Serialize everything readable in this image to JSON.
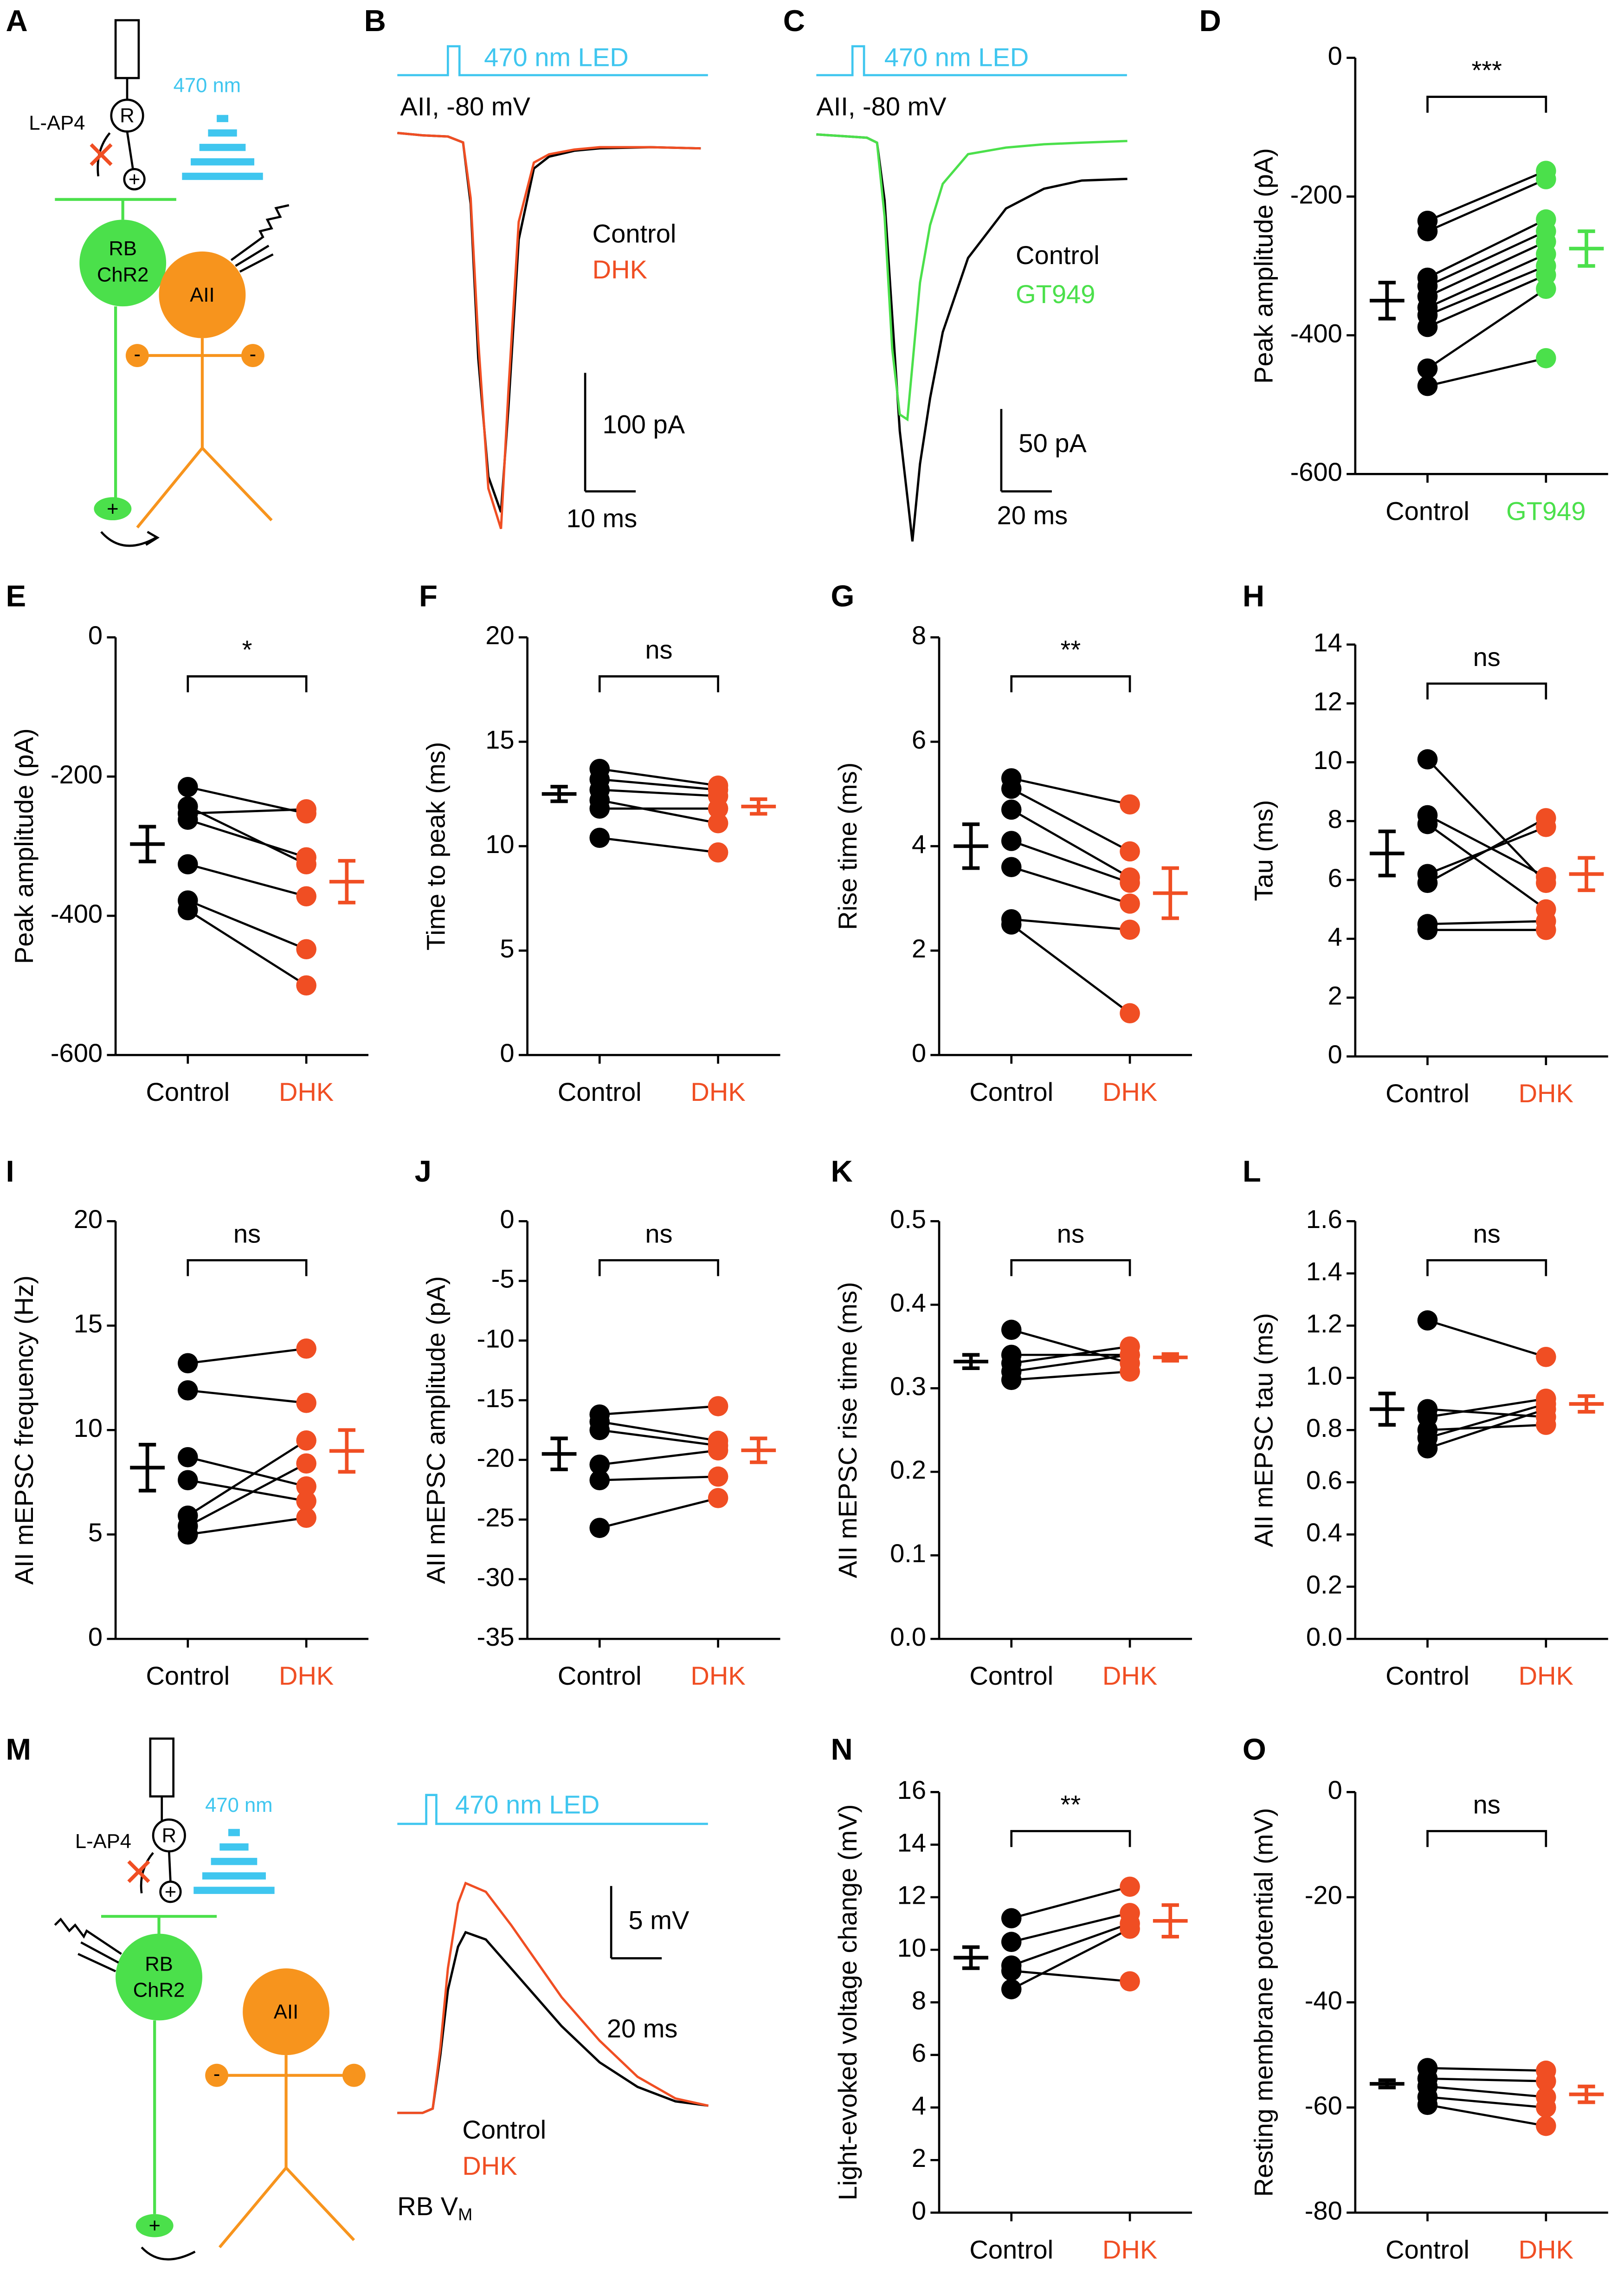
{
  "chart_data": [
    {
      "type": "trace",
      "panel": "B",
      "stimulus": "470 nm LED",
      "stimulus_color": "#3fc6ef",
      "cell_label": "AII, -80 mV",
      "x": [
        0,
        5,
        10,
        13,
        14.5,
        16,
        18,
        20.5,
        22,
        24,
        27,
        30,
        35,
        40,
        50,
        60
      ],
      "series": [
        {
          "name": "Control",
          "color": "#000000",
          "values": [
            0,
            -2,
            -3,
            -8,
            -60,
            -190,
            -290,
            -320,
            -230,
            -90,
            -30,
            -20,
            -15,
            -13,
            -12,
            -13
          ]
        },
        {
          "name": "DHK",
          "color": "#f04e23",
          "values": [
            0,
            -2,
            -3,
            -8,
            -55,
            -175,
            -300,
            -334,
            -215,
            -75,
            -25,
            -18,
            -14,
            -12,
            -12,
            -13
          ]
        }
      ],
      "scalebar": {
        "x": {
          "value": 10,
          "label": "10 ms"
        },
        "y": {
          "value": 100,
          "label": "100 pA"
        }
      }
    },
    {
      "type": "trace",
      "panel": "C",
      "stimulus": "470 nm LED",
      "stimulus_color": "#3fc6ef",
      "cell_label": "AII, -80 mV",
      "x": [
        0,
        10,
        20,
        24,
        27,
        30,
        33,
        36,
        38,
        41,
        45,
        50,
        60,
        75,
        90,
        105,
        123
      ],
      "series": [
        {
          "name": "Control",
          "color": "#000000",
          "values": [
            0,
            -1,
            -2,
            -5,
            -40,
            -110,
            -180,
            -220,
            -247,
            -200,
            -160,
            -120,
            -75,
            -45,
            -33,
            -28,
            -27
          ]
        },
        {
          "name": "GT949",
          "color": "#4be04b",
          "values": [
            0,
            -1,
            -2,
            -5,
            -50,
            -130,
            -170,
            -173,
            -140,
            -90,
            -55,
            -30,
            -12,
            -8,
            -6,
            -5,
            -4
          ]
        }
      ],
      "scalebar": {
        "x": {
          "value": 20,
          "label": "20 ms"
        },
        "y": {
          "value": 50,
          "label": "50 pA"
        }
      }
    },
    {
      "type": "paired",
      "panel": "D",
      "ylabel": "Peak amplitude (pA)",
      "ylim": [
        -600,
        0
      ],
      "yticks": [
        0,
        -200,
        -400,
        -600
      ],
      "significance": "***",
      "groups": [
        {
          "label": "Control",
          "color": "#000000",
          "values": [
            -235,
            -250,
            -317,
            -329,
            -344,
            -360,
            -371,
            -388,
            -448,
            -473
          ],
          "mean": -350,
          "sem": 26
        },
        {
          "label": "GT949",
          "color": "#4be04b",
          "values": [
            -163,
            -175,
            -233,
            -250,
            -265,
            -283,
            -300,
            -313,
            -333,
            -433
          ],
          "mean": -275,
          "sem": 25
        }
      ]
    },
    {
      "type": "paired",
      "panel": "E",
      "ylabel": "Peak amplitude (pA)",
      "ylim": [
        -600,
        0
      ],
      "yticks": [
        0,
        -200,
        -400,
        -600
      ],
      "significance": "*",
      "groups": [
        {
          "label": "Control",
          "color": "#000000",
          "values": [
            -215,
            -243,
            -262,
            -326,
            -378,
            -392,
            -253
          ],
          "mean": -297,
          "sem": 25
        },
        {
          "label": "DHK",
          "color": "#f04e23",
          "values": [
            -253,
            -326,
            -316,
            -372,
            -448,
            -500,
            -247
          ],
          "mean": -351,
          "sem": 30
        }
      ]
    },
    {
      "type": "paired",
      "panel": "F",
      "ylabel": "Time to peak (ms)",
      "ylim": [
        0,
        20
      ],
      "yticks": [
        0,
        5,
        10,
        15,
        20
      ],
      "significance": "ns",
      "groups": [
        {
          "label": "Control",
          "color": "#000000",
          "values": [
            13.7,
            13.2,
            12.7,
            12.2,
            11.8,
            10.4
          ],
          "mean": 12.5,
          "sem": 0.35
        },
        {
          "label": "DHK",
          "color": "#f04e23",
          "values": [
            12.9,
            12.7,
            12.4,
            11.1,
            11.8,
            9.7
          ],
          "mean": 11.9,
          "sem": 0.35
        }
      ]
    },
    {
      "type": "paired",
      "panel": "G",
      "ylabel": "Rise time (ms)",
      "ylim": [
        0,
        8
      ],
      "yticks": [
        0,
        2,
        4,
        6,
        8
      ],
      "significance": "**",
      "groups": [
        {
          "label": "Control",
          "color": "#000000",
          "values": [
            5.3,
            5.1,
            4.7,
            4.1,
            3.6,
            2.6,
            2.5
          ],
          "mean": 4.0,
          "sem": 0.42
        },
        {
          "label": "DHK",
          "color": "#f04e23",
          "values": [
            4.8,
            3.9,
            3.4,
            3.3,
            2.9,
            2.4,
            0.8
          ],
          "mean": 3.1,
          "sem": 0.48
        }
      ]
    },
    {
      "type": "paired",
      "panel": "H",
      "ylabel": "Tau (ms)",
      "ylim": [
        0,
        14
      ],
      "yticks": [
        0,
        2,
        4,
        6,
        8,
        10,
        12,
        14
      ],
      "significance": "ns",
      "groups": [
        {
          "label": "Control",
          "color": "#000000",
          "values": [
            10.1,
            8.2,
            7.9,
            6.2,
            5.9,
            4.5,
            4.3
          ],
          "mean": 6.9,
          "sem": 0.75
        },
        {
          "label": "DHK",
          "color": "#f04e23",
          "values": [
            5.9,
            6.1,
            5.0,
            7.8,
            8.1,
            4.6,
            4.3
          ],
          "mean": 6.2,
          "sem": 0.55
        }
      ]
    },
    {
      "type": "paired",
      "panel": "I",
      "ylabel": "AII mEPSC frequency (Hz)",
      "ylim": [
        0,
        20
      ],
      "yticks": [
        0,
        5,
        10,
        15,
        20
      ],
      "significance": "ns",
      "groups": [
        {
          "label": "Control",
          "color": "#000000",
          "values": [
            13.2,
            11.9,
            8.7,
            7.6,
            5.9,
            5.4,
            5.0
          ],
          "mean": 8.2,
          "sem": 1.1
        },
        {
          "label": "DHK",
          "color": "#f04e23",
          "values": [
            13.9,
            11.3,
            7.3,
            6.6,
            9.5,
            8.4,
            5.8
          ],
          "mean": 9.0,
          "sem": 1.0
        }
      ]
    },
    {
      "type": "paired",
      "panel": "J",
      "ylabel": "AII mEPSC amplitude (pA)",
      "ylim": [
        -35,
        0
      ],
      "yticks": [
        0,
        -5,
        -10,
        -15,
        -20,
        -25,
        -30,
        -35
      ],
      "significance": "ns",
      "groups": [
        {
          "label": "Control",
          "color": "#000000",
          "values": [
            -16.2,
            -16.8,
            -17.5,
            -20.4,
            -21.7,
            -25.7
          ],
          "mean": -19.5,
          "sem": 1.3
        },
        {
          "label": "DHK",
          "color": "#f04e23",
          "values": [
            -15.5,
            -18.4,
            -18.8,
            -19.2,
            -21.4,
            -23.2
          ],
          "mean": -19.2,
          "sem": 1.0
        }
      ]
    },
    {
      "type": "paired",
      "panel": "K",
      "ylabel": "AII mEPSC rise time (ms)",
      "ylim": [
        0,
        0.5
      ],
      "yticks": [
        {
          "value": 0,
          "label": "0.0"
        },
        0.1,
        0.2,
        0.3,
        0.4,
        0.5
      ],
      "significance": "ns",
      "groups": [
        {
          "label": "Control",
          "color": "#000000",
          "values": [
            0.37,
            0.34,
            0.33,
            0.32,
            0.31
          ],
          "mean": 0.332,
          "sem": 0.008
        },
        {
          "label": "DHK",
          "color": "#f04e23",
          "values": [
            0.33,
            0.34,
            0.35,
            0.34,
            0.32
          ],
          "mean": 0.337,
          "sem": 0.004
        }
      ]
    },
    {
      "type": "paired",
      "panel": "L",
      "ylabel": "AII mEPSC tau (ms)",
      "ylim": [
        0,
        1.6
      ],
      "yticks": [
        {
          "value": 0,
          "label": "0.0"
        },
        0.2,
        0.4,
        0.6,
        0.8,
        {
          "value": 1,
          "label": "1.0"
        },
        1.2,
        1.4,
        1.6
      ],
      "significance": "ns",
      "groups": [
        {
          "label": "Control",
          "color": "#000000",
          "values": [
            1.22,
            0.88,
            0.85,
            0.8,
            0.77,
            0.73
          ],
          "mean": 0.88,
          "sem": 0.06
        },
        {
          "label": "DHK",
          "color": "#f04e23",
          "values": [
            1.08,
            0.85,
            0.92,
            0.82,
            0.9,
            0.88
          ],
          "mean": 0.9,
          "sem": 0.03
        }
      ]
    },
    {
      "type": "trace",
      "panel": "M",
      "stimulus": "470 nm LED",
      "stimulus_color": "#3fc6ef",
      "cell_label": "RB V",
      "cell_label_subscript": "M",
      "x": [
        0,
        10,
        14,
        17,
        20,
        24,
        27,
        35,
        45,
        55,
        65,
        80,
        95,
        110,
        123
      ],
      "series": [
        {
          "name": "Control",
          "color": "#000000",
          "values": [
            0,
            0,
            0.3,
            4,
            8.5,
            11.5,
            12.5,
            12,
            10,
            8,
            6,
            3.5,
            1.8,
            0.8,
            0.5
          ]
        },
        {
          "name": "DHK",
          "color": "#f04e23",
          "values": [
            0,
            0,
            0.3,
            4.5,
            10,
            14.5,
            15.9,
            15.3,
            13,
            10.5,
            8,
            5,
            2.5,
            1,
            0.5
          ]
        }
      ],
      "scalebar": {
        "x": {
          "value": 20,
          "label": "20 ms"
        },
        "y": {
          "value": 5,
          "label": "5 mV"
        }
      }
    },
    {
      "type": "paired",
      "panel": "N",
      "ylabel": "Light-evoked voltage change (mV)",
      "ylim": [
        0,
        16
      ],
      "yticks": [
        0,
        2,
        4,
        6,
        8,
        10,
        12,
        14,
        16
      ],
      "significance": "**",
      "groups": [
        {
          "label": "Control",
          "color": "#000000",
          "values": [
            11.2,
            10.3,
            9.4,
            9.2,
            8.5
          ],
          "mean": 9.7,
          "sem": 0.4
        },
        {
          "label": "DHK",
          "color": "#f04e23",
          "values": [
            12.4,
            11.4,
            11.0,
            8.8,
            10.8
          ],
          "mean": 11.1,
          "sem": 0.6
        }
      ]
    },
    {
      "type": "paired",
      "panel": "O",
      "ylabel": "Resting membrane potential (mV)",
      "ylim": [
        -80,
        0
      ],
      "yticks": [
        0,
        -20,
        -40,
        -60,
        -80
      ],
      "significance": "ns",
      "groups": [
        {
          "label": "Control",
          "color": "#000000",
          "values": [
            -52.5,
            -54.5,
            -56,
            -58,
            -59.5
          ],
          "mean": -55.5,
          "sem": 0.7
        },
        {
          "label": "DHK",
          "color": "#f04e23",
          "values": [
            -53,
            -55,
            -58,
            -60,
            -63.5
          ],
          "mean": -57.5,
          "sem": 1.5
        }
      ]
    }
  ],
  "diagrams": [
    {
      "panel": "A",
      "light": "470 nm",
      "drug": "L-AP4",
      "receptor": "R",
      "rb": [
        "RB",
        "ChR2"
      ],
      "aii": "AII",
      "signs": [
        "+",
        "-",
        "-",
        "+"
      ]
    },
    {
      "panel": "M",
      "light": "470 nm",
      "drug": "L-AP4",
      "receptor": "R",
      "rb": [
        "RB",
        "ChR2"
      ],
      "aii": "AII",
      "signs": [
        "+",
        "-",
        "+"
      ]
    }
  ]
}
